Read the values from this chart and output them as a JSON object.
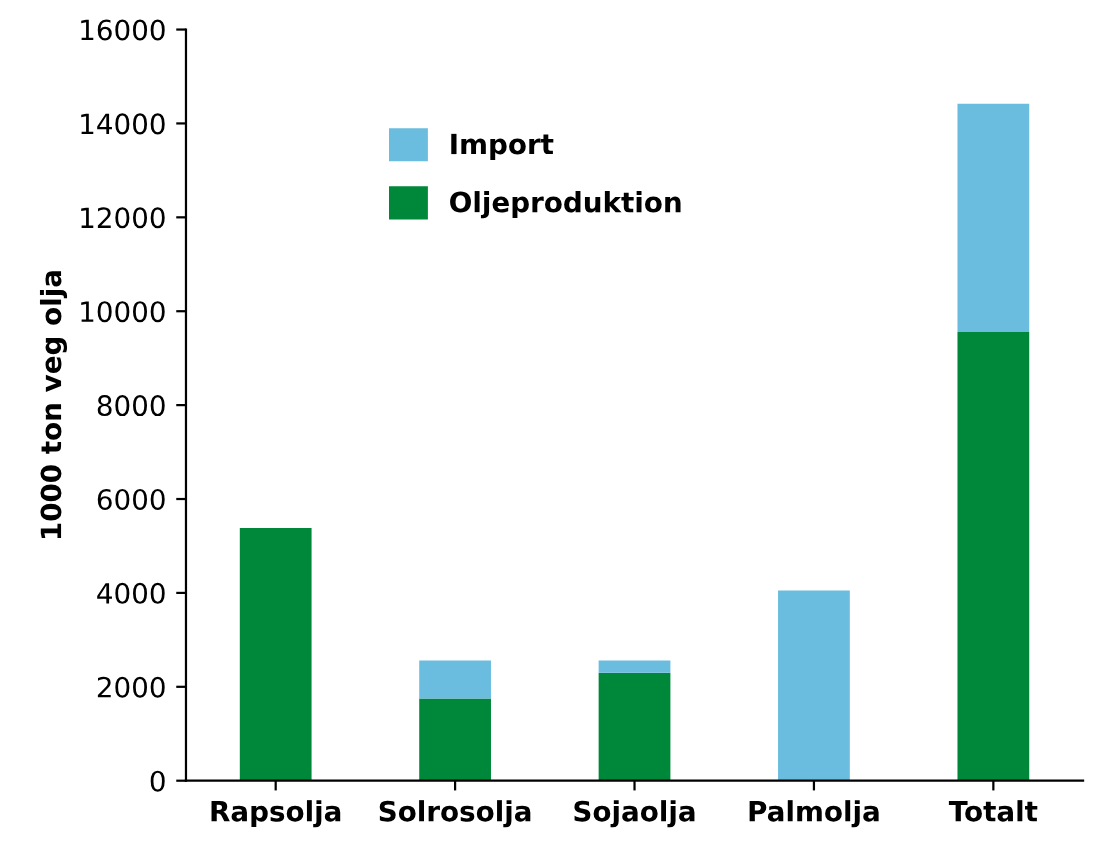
{
  "chart_data": {
    "type": "bar",
    "stacked": true,
    "ylabel": "1000 ton veg olja",
    "categories": [
      "Rapsolja",
      "Solrosolja",
      "Sojaolja",
      "Palmolja",
      "Totalt"
    ],
    "series": [
      {
        "name": "Oljeproduktion",
        "color": "#00883a",
        "values": [
          5380,
          1750,
          2300,
          0,
          9560
        ]
      },
      {
        "name": "Import",
        "color": "#6bbde0",
        "values": [
          0,
          810,
          260,
          4050,
          4860
        ]
      }
    ],
    "ylim": [
      0,
      16000
    ],
    "yticks": [
      0,
      2000,
      4000,
      6000,
      8000,
      10000,
      12000,
      14000,
      16000
    ],
    "grid": false,
    "legend": "top left"
  }
}
